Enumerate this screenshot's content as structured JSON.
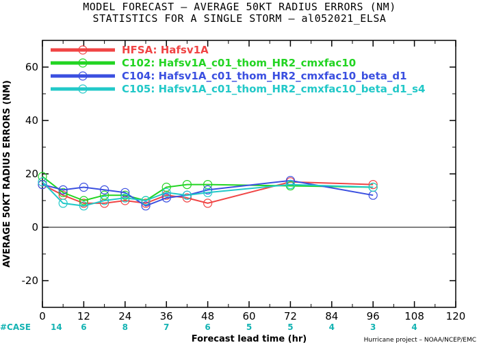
{
  "title_line1": "MODEL FORECAST – AVERAGE 50KT RADIUS ERRORS (NM)",
  "title_line2": "STATISTICS FOR A SINGLE STORM – al052021_ELSA",
  "credit": "Hurricane project – NOAA/NCEP/EMC",
  "case_label": "#CASE",
  "chart_data": {
    "type": "line",
    "xlabel": "Forecast lead time (hr)",
    "ylabel": "AVERAGE 50KT RADIUS ERRORS (NM)",
    "xlim": [
      0,
      120
    ],
    "ylim": [
      -30,
      70
    ],
    "xticks": [
      0,
      12,
      24,
      36,
      48,
      60,
      72,
      84,
      96,
      108,
      120
    ],
    "yticks": [
      -20,
      0,
      20,
      40,
      60
    ],
    "case_counts": [
      {
        "x": 0,
        "label": "14"
      },
      {
        "x": 12,
        "label": "6"
      },
      {
        "x": 24,
        "label": "8"
      },
      {
        "x": 36,
        "label": "7"
      },
      {
        "x": 48,
        "label": "6"
      },
      {
        "x": 60,
        "label": "5"
      },
      {
        "x": 72,
        "label": "5"
      },
      {
        "x": 84,
        "label": "4"
      },
      {
        "x": 96,
        "label": "3"
      },
      {
        "x": 108,
        "label": "4"
      }
    ],
    "zero_line": true,
    "grid": false,
    "legend_position": "top-left",
    "series": [
      {
        "name": "HFSA: Hafsv1A",
        "color": "#f04444",
        "x": [
          0,
          6,
          12,
          18,
          24,
          30,
          36,
          42,
          48,
          72,
          96
        ],
        "y": [
          16,
          12,
          9,
          9,
          10,
          9,
          12,
          11,
          9,
          17,
          16
        ]
      },
      {
        "name": "C102: Hafsv1A_c01_thom_HR2_cmxfac10",
        "color": "#22d422",
        "x": [
          0,
          6,
          12,
          18,
          24,
          30,
          36,
          42,
          48,
          72,
          96
        ],
        "y": [
          19,
          13,
          10,
          12,
          12,
          10,
          15,
          16,
          16,
          15.5,
          15
        ]
      },
      {
        "name": "C104: Hafsv1A_c01_thom_HR2_cmxfac10_beta_d1",
        "color": "#3a4fe0",
        "x": [
          0,
          6,
          12,
          18,
          24,
          30,
          36,
          42,
          48,
          72,
          96
        ],
        "y": [
          16,
          14,
          15,
          14,
          13,
          8,
          11,
          12,
          14,
          17.5,
          12
        ]
      },
      {
        "name": "C105: Hafsv1A_c01_thom_HR2_cmxfac10_beta_d1_s4",
        "color": "#22c8c8",
        "x": [
          0,
          6,
          12,
          18,
          24,
          30,
          36,
          42,
          48,
          72,
          96
        ],
        "y": [
          17,
          9,
          8,
          10,
          11,
          10,
          13,
          12,
          13,
          16,
          15
        ]
      }
    ]
  }
}
